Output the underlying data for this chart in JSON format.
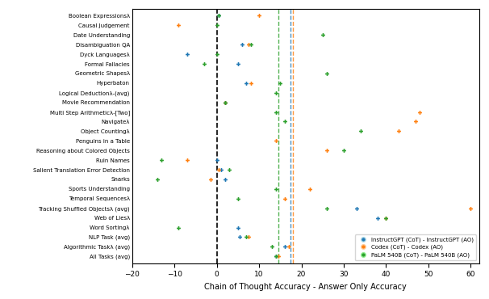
{
  "tasks": [
    "Boolean Expressionsλ",
    "Causal Judgement",
    "Date Understanding",
    "Disambiguation QA",
    "Dyck Languagesλ",
    "Formal Fallacies",
    "Geometric Shapesλ",
    "Hyperbaton",
    "Logical Deductionλ-(avg)",
    "Movie Recommendation",
    "Multi Step Arithmeticλ-[Two]",
    "Navigateλ",
    "Object Countingλ",
    "Penguins in a Table",
    "Reasoning about Colored Objects",
    "Ruin Names",
    "Salient Translation Error Detection",
    "Snarks",
    "Sports Understanding",
    "Temporal Sequencesλ",
    "Tracking Shuffled Objectsλ (avg)",
    "Web of Liesλ",
    "Word Sortingλ",
    "NLP Task (avg)",
    "Algorithmic Taskλ (avg)",
    "All Tasks (avg)"
  ],
  "instruct_vals": [
    0.5,
    null,
    null,
    6.0,
    -7.0,
    5.0,
    null,
    7.0,
    null,
    2.0,
    null,
    null,
    null,
    null,
    null,
    0.0,
    1.0,
    2.0,
    null,
    null,
    33.0,
    38.0,
    5.0,
    5.5,
    16.0,
    14.0
  ],
  "codex_vals": [
    10.0,
    -9.0,
    null,
    7.5,
    null,
    null,
    null,
    8.0,
    null,
    2.0,
    48.0,
    47.0,
    43.0,
    14.0,
    26.0,
    -7.0,
    0.5,
    -1.5,
    22.0,
    16.0,
    60.0,
    40.0,
    null,
    7.5,
    17.0,
    14.5
  ],
  "palm_vals": [
    0.5,
    0.0,
    25.0,
    8.0,
    0.0,
    -3.0,
    26.0,
    15.0,
    14.0,
    2.0,
    14.0,
    16.0,
    34.0,
    null,
    30.0,
    -13.0,
    3.0,
    -14.0,
    14.0,
    5.0,
    26.0,
    40.0,
    -9.0,
    7.0,
    13.0,
    14.0
  ],
  "vline_instruct": 17.5,
  "vline_codex": 18.0,
  "vline_palm": 14.5,
  "xlim": [
    -20,
    62
  ],
  "xticks": [
    -20,
    -10,
    0,
    10,
    20,
    30,
    40,
    50,
    60
  ],
  "xlabel": "Chain of Thought Accuracy - Answer Only Accuracy",
  "colors": {
    "instruct": "#1f77b4",
    "codex": "#ff7f0e",
    "palm": "#2ca02c"
  },
  "label_instruct": "InstructGPT (CoT) - InstructGPT (AO)",
  "label_codex": "Codex (CoT) - Codex (AO)",
  "label_palm": "PaLM 540B (CoT) - PaLM 540B (AO)"
}
